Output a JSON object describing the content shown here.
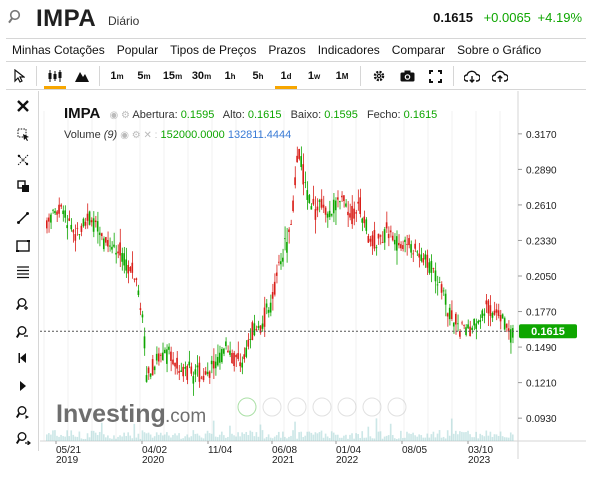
{
  "header": {
    "symbol": "IMPA",
    "period": "Diário",
    "last": "0.1615",
    "change": "+0.0065",
    "change_pct": "+4.19%",
    "up_color": "#0ea600",
    "search_icon": "search-icon"
  },
  "menu": [
    "Minhas Cotações",
    "Popular",
    "Tipos de Preços",
    "Prazos",
    "Indicadores",
    "Comparar",
    "Sobre o Gráfico"
  ],
  "toolbar": {
    "intervals": [
      {
        "main": "1",
        "sup": "m"
      },
      {
        "main": "5",
        "sup": "m"
      },
      {
        "main": "15",
        "sup": "m"
      },
      {
        "main": "30",
        "sup": "m"
      },
      {
        "main": "1",
        "sup": "h"
      },
      {
        "main": "5",
        "sup": "h"
      },
      {
        "main": "1",
        "sup": "d"
      },
      {
        "main": "1",
        "sup": "w"
      },
      {
        "main": "1",
        "sup": "M"
      }
    ],
    "active_interval": "1d",
    "accent": "#f7a600"
  },
  "legend": {
    "symbol": "IMPA",
    "open_label": "Abertura:",
    "open": "0.1595",
    "high_label": "Alto:",
    "high": "0.1615",
    "low_label": "Baixo:",
    "low": "0.1595",
    "close_label": "Fecho:",
    "close": "0.1615",
    "volume_label": "Volume",
    "volume_param": "(9)",
    "volume_val": "152000.0000",
    "volume_ma": "132811.4444"
  },
  "watermark": {
    "brand": "Investing",
    "suffix": ".com"
  },
  "chart_data": {
    "type": "line",
    "title": "",
    "y_ticks": [
      "0.3170",
      "0.2890",
      "0.2610",
      "0.2330",
      "0.2050",
      "0.1770",
      "0.1490",
      "0.1210",
      "0.0930"
    ],
    "ylim": [
      0.075,
      0.335
    ],
    "x_ticks": [
      {
        "month": "05/21",
        "year": "2019"
      },
      {
        "month": "04/02",
        "year": "2020"
      },
      {
        "month": "11/04",
        "year": ""
      },
      {
        "month": "06/08",
        "year": "2021"
      },
      {
        "month": "01/04",
        "year": "2022"
      },
      {
        "month": "08/05",
        "year": ""
      },
      {
        "month": "03/10",
        "year": "2023"
      }
    ],
    "current_price": "0.1615",
    "current_value": 0.1615,
    "up_color": "#0ea600",
    "down_color": "#d91e18",
    "price_path": [
      [
        0.0,
        0.248
      ],
      [
        0.03,
        0.258
      ],
      [
        0.06,
        0.238
      ],
      [
        0.09,
        0.252
      ],
      [
        0.12,
        0.232
      ],
      [
        0.15,
        0.228
      ],
      [
        0.17,
        0.215
      ],
      [
        0.19,
        0.205
      ],
      [
        0.205,
        0.178
      ],
      [
        0.215,
        0.125
      ],
      [
        0.23,
        0.135
      ],
      [
        0.25,
        0.146
      ],
      [
        0.27,
        0.138
      ],
      [
        0.29,
        0.132
      ],
      [
        0.31,
        0.13
      ],
      [
        0.33,
        0.128
      ],
      [
        0.35,
        0.13
      ],
      [
        0.37,
        0.14
      ],
      [
        0.385,
        0.15
      ],
      [
        0.4,
        0.139
      ],
      [
        0.42,
        0.135
      ],
      [
        0.44,
        0.16
      ],
      [
        0.46,
        0.165
      ],
      [
        0.48,
        0.185
      ],
      [
        0.5,
        0.215
      ],
      [
        0.52,
        0.238
      ],
      [
        0.53,
        0.265
      ],
      [
        0.54,
        0.305
      ],
      [
        0.55,
        0.285
      ],
      [
        0.56,
        0.27
      ],
      [
        0.575,
        0.258
      ],
      [
        0.59,
        0.262
      ],
      [
        0.61,
        0.255
      ],
      [
        0.63,
        0.268
      ],
      [
        0.65,
        0.25
      ],
      [
        0.67,
        0.262
      ],
      [
        0.69,
        0.238
      ],
      [
        0.71,
        0.23
      ],
      [
        0.73,
        0.244
      ],
      [
        0.75,
        0.228
      ],
      [
        0.77,
        0.232
      ],
      [
        0.79,
        0.225
      ],
      [
        0.81,
        0.218
      ],
      [
        0.83,
        0.21
      ],
      [
        0.85,
        0.196
      ],
      [
        0.86,
        0.18
      ],
      [
        0.87,
        0.17
      ],
      [
        0.88,
        0.168
      ],
      [
        0.9,
        0.16
      ],
      [
        0.915,
        0.163
      ],
      [
        0.93,
        0.17
      ],
      [
        0.945,
        0.18
      ],
      [
        0.96,
        0.176
      ],
      [
        0.975,
        0.172
      ],
      [
        0.99,
        0.16
      ],
      [
        1.0,
        0.1615
      ]
    ]
  }
}
